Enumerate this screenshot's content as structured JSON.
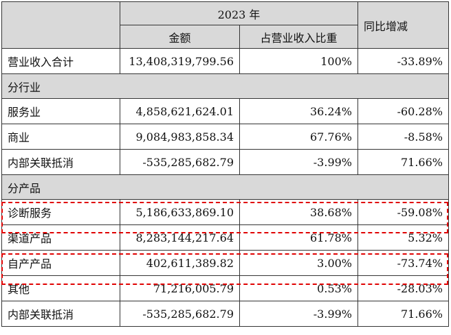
{
  "header": {
    "year_group": "2023 年",
    "yoy": "同比增减",
    "amount": "金额",
    "ratio": "占营业收入比重"
  },
  "total": {
    "label": "营业收入合计",
    "amount": "13,408,319,799.56",
    "ratio": "100%",
    "yoy": "-33.89%"
  },
  "sections": [
    {
      "title": "分行业",
      "rows": [
        {
          "label": "服务业",
          "amount": "4,858,621,624.01",
          "ratio": "36.24%",
          "yoy": "-60.28%"
        },
        {
          "label": "商业",
          "amount": "9,084,983,858.34",
          "ratio": "67.76%",
          "yoy": "-8.58%"
        },
        {
          "label": "内部关联抵消",
          "amount": "-535,285,682.79",
          "ratio": "-3.99%",
          "yoy": "71.66%"
        }
      ]
    },
    {
      "title": "分产品",
      "rows": [
        {
          "label": "诊断服务",
          "amount": "5,186,633,869.10",
          "ratio": "38.68%",
          "yoy": "-59.08%"
        },
        {
          "label": "渠道产品",
          "amount": "8,283,144,217.64",
          "ratio": "61.78%",
          "yoy": "5.32%"
        },
        {
          "label": "自产产品",
          "amount": "402,611,389.82",
          "ratio": "3.00%",
          "yoy": "-73.74%"
        },
        {
          "label": "其他",
          "amount": "71,216,005.79",
          "ratio": "0.53%",
          "yoy": "-28.03%"
        },
        {
          "label": "内部关联抵消",
          "amount": "-535,285,682.79",
          "ratio": "-3.99%",
          "yoy": "71.66%"
        }
      ]
    }
  ],
  "highlight_color": "#e00000"
}
